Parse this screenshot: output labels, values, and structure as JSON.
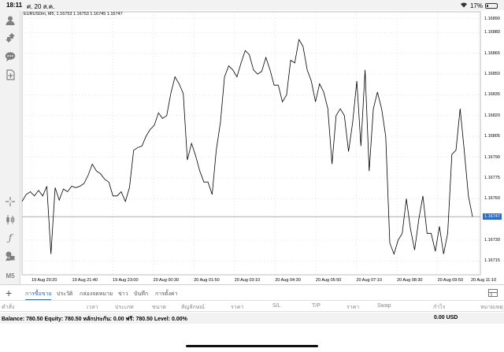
{
  "status_bar": {
    "time": "18:11",
    "date": "ศ. 20 ส.ค.",
    "battery": "17%",
    "battery_level": 0.17
  },
  "toolbar": {
    "icons": [
      "account-icon",
      "trade-icon",
      "chat-icon",
      "new-document-icon",
      "crosshair-icon",
      "candles-icon",
      "indicator-icon",
      "objects-icon"
    ],
    "timeframe": "M5"
  },
  "chart": {
    "symbol_info": "EURUSDm, M5, 1.16753 1.16753 1.16745 1.16747",
    "last_price": "1.16747",
    "colors": {
      "line": "#000000",
      "price_line": "#2f6dc4",
      "grid": "#c8c8c8",
      "background": "#ffffff"
    }
  },
  "chart_data": {
    "type": "line",
    "title": "",
    "xlabel": "",
    "ylabel": "",
    "ylim": [
      1.16705,
      1.16895
    ],
    "y_ticks": [
      "1.16890",
      "1.16880",
      "1.16865",
      "1.16850",
      "1.16835",
      "1.16820",
      "1.16805",
      "1.16790",
      "1.16775",
      "1.16760",
      "1.16747",
      "1.16730",
      "1.16715"
    ],
    "x_ticks": [
      "19 Aug 20:20",
      "19 Aug 21:40",
      "19 Aug 23:00",
      "20 Aug 00:30",
      "20 Aug 01:50",
      "20 Aug 03:10",
      "20 Aug 04:30",
      "20 Aug 05:50",
      "20 Aug 07:10",
      "20 Aug 08:30",
      "20 Aug 09:50",
      "20 Aug 11:10"
    ],
    "grid": true,
    "series": [
      {
        "values": [
          1.16758,
          1.16763,
          1.16765,
          1.16762,
          1.16766,
          1.16762,
          1.16769,
          1.1672,
          1.16768,
          1.16759,
          1.16767,
          1.16765,
          1.16769,
          1.16768,
          1.16769,
          1.16771,
          1.16777,
          1.16785,
          1.1678,
          1.16778,
          1.16774,
          1.16772,
          1.16762,
          1.16762,
          1.16765,
          1.16758,
          1.16768,
          1.16795,
          1.16797,
          1.16798,
          1.16805,
          1.1681,
          1.16813,
          1.16822,
          1.16818,
          1.1682,
          1.16836,
          1.16848,
          1.16843,
          1.16836,
          1.16788,
          1.168,
          1.16791,
          1.1678,
          1.16772,
          1.16772,
          1.16763,
          1.16795,
          1.16815,
          1.16848,
          1.16856,
          1.16853,
          1.16848,
          1.16858,
          1.16867,
          1.16864,
          1.16853,
          1.1685,
          1.16852,
          1.16862,
          1.16853,
          1.16842,
          1.16842,
          1.1683,
          1.16835,
          1.1686,
          1.16858,
          1.16875,
          1.1687,
          1.16853,
          1.16845,
          1.1683,
          1.16843,
          1.16837,
          1.16825,
          1.16785,
          1.1682,
          1.16825,
          1.1682,
          1.16794,
          1.16815,
          1.16845,
          1.16798,
          1.16853,
          1.1678,
          1.16825,
          1.16837,
          1.16825,
          1.16805,
          1.16728,
          1.1672,
          1.1673,
          1.16735,
          1.1676,
          1.16738,
          1.16723,
          1.16745,
          1.16762,
          1.16735,
          1.16735,
          1.16722,
          1.1674,
          1.1672,
          1.16735,
          1.16792,
          1.16795,
          1.16825,
          1.16795,
          1.16762,
          1.16747
        ]
      }
    ]
  },
  "bottom_panel": {
    "add_label": "+",
    "tabs": [
      "การซื้อขาย",
      "ประวัติ",
      "กล่องจดหมาย",
      "ข่าว",
      "บันทึก",
      "การตั้งค่า"
    ],
    "active_tab": 0,
    "columns": [
      "คำสั่ง",
      "เวลา",
      "ประเภท",
      "ขนาด",
      "สัญลักษณ์",
      "ราคา",
      "S/L",
      "T/P",
      "ราคา",
      "Swap",
      "กำไร",
      "หมายเหตุ"
    ],
    "balance_line": "Balance: 780.50 Equity: 780.50 หลักประกัน: 0.00 ฟรี: 780.50 Level: 0.00%",
    "profit": "0.00  USD"
  }
}
